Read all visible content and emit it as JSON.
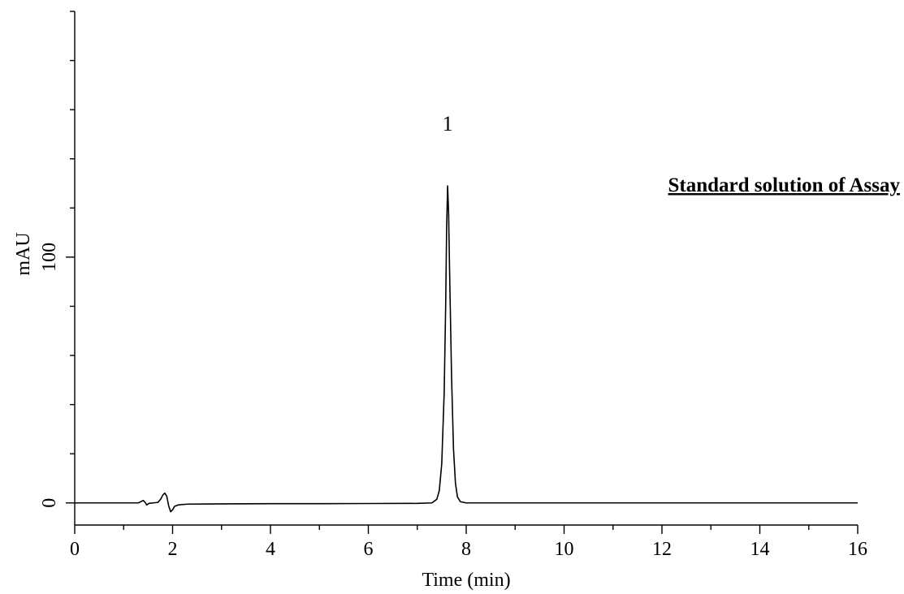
{
  "chart_data": {
    "type": "line",
    "title": "",
    "xlabel": "Time (min)",
    "ylabel": "mAU",
    "xlim": [
      0,
      16
    ],
    "ylim": [
      -9,
      200
    ],
    "x_ticks": [
      0,
      2,
      4,
      6,
      8,
      10,
      12,
      14,
      16
    ],
    "x_minor_step": 1,
    "y_ticks": [
      0,
      100
    ],
    "y_minor_step": 20,
    "grid": false,
    "legend": "none",
    "annotation": "Standard solution of Assay",
    "peaks": [
      {
        "label": "1",
        "retention_time": 7.62,
        "height": 129
      }
    ],
    "series": [
      {
        "line_color": "#000000",
        "points": [
          [
            0.0,
            0.0
          ],
          [
            0.5,
            0.0
          ],
          [
            1.0,
            0.0
          ],
          [
            1.3,
            0.0
          ],
          [
            1.36,
            0.6
          ],
          [
            1.4,
            1.0
          ],
          [
            1.44,
            0.2
          ],
          [
            1.47,
            -0.8
          ],
          [
            1.52,
            -0.2
          ],
          [
            1.6,
            0.0
          ],
          [
            1.7,
            0.2
          ],
          [
            1.76,
            1.6
          ],
          [
            1.8,
            3.2
          ],
          [
            1.84,
            4.0
          ],
          [
            1.88,
            2.8
          ],
          [
            1.92,
            -1.2
          ],
          [
            1.96,
            -3.6
          ],
          [
            2.0,
            -2.8
          ],
          [
            2.04,
            -1.4
          ],
          [
            2.12,
            -0.8
          ],
          [
            2.3,
            -0.5
          ],
          [
            3.0,
            -0.4
          ],
          [
            4.0,
            -0.3
          ],
          [
            5.0,
            -0.3
          ],
          [
            6.0,
            -0.25
          ],
          [
            7.0,
            -0.2
          ],
          [
            7.3,
            0.0
          ],
          [
            7.4,
            1.5
          ],
          [
            7.45,
            5.0
          ],
          [
            7.5,
            16.0
          ],
          [
            7.55,
            45.0
          ],
          [
            7.58,
            80.0
          ],
          [
            7.6,
            112.0
          ],
          [
            7.62,
            129.0
          ],
          [
            7.64,
            118.0
          ],
          [
            7.66,
            95.0
          ],
          [
            7.7,
            52.0
          ],
          [
            7.74,
            22.0
          ],
          [
            7.78,
            8.0
          ],
          [
            7.82,
            2.5
          ],
          [
            7.88,
            0.5
          ],
          [
            8.0,
            0.0
          ],
          [
            9.0,
            0.0
          ],
          [
            10.0,
            0.0
          ],
          [
            12.0,
            0.0
          ],
          [
            14.0,
            0.0
          ],
          [
            16.0,
            0.0
          ]
        ]
      }
    ]
  }
}
